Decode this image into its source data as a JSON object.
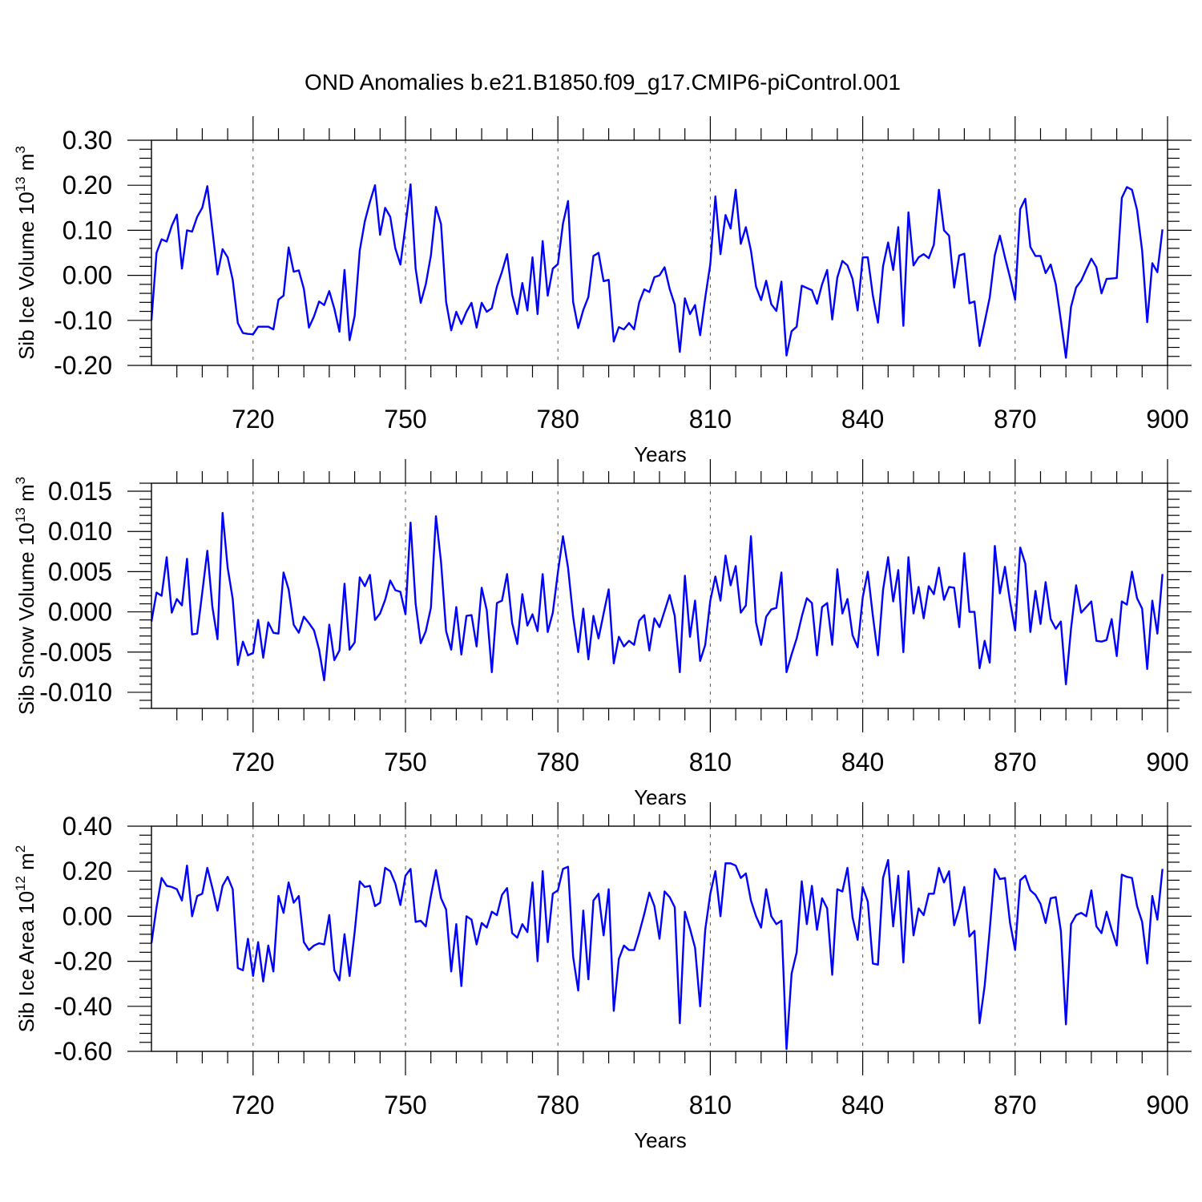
{
  "title": "OND Anomalies b.e21.B1850.f09_g17.CMIP6-piControl.001",
  "colors": {
    "line": "#0000ff",
    "axis": "#000000",
    "grid": "#555555"
  },
  "chart_data": [
    {
      "type": "line",
      "xlabel": "Years",
      "ylabel": {
        "prefix": "Sib Ice Volume 10",
        "exp": "13",
        "unit": " m",
        "unit_exp": "3"
      },
      "xlim": [
        700,
        900
      ],
      "ylim": [
        -0.2,
        0.3
      ],
      "yticks": [
        -0.2,
        -0.1,
        0.0,
        0.1,
        0.2,
        0.3
      ],
      "ytick_labels": [
        "-0.20",
        "-0.10",
        "0.00",
        "0.10",
        "0.20",
        "0.30"
      ],
      "xticks": [
        720,
        750,
        780,
        810,
        840,
        870,
        900
      ],
      "xtick_labels": [
        "720",
        "750",
        "780",
        "810",
        "840",
        "870",
        "900"
      ],
      "grid_x": "dashed vertical lines at labeled years",
      "x_start": 700,
      "series": [
        {
          "values": [
            -0.1,
            0.05,
            0.08,
            0.075,
            0.11,
            0.135,
            0.015,
            0.1,
            0.097,
            0.13,
            0.15,
            0.198,
            0.1,
            0.002,
            0.058,
            0.04,
            -0.01,
            -0.106,
            -0.128,
            -0.13,
            -0.131,
            -0.114,
            -0.114,
            -0.114,
            -0.12,
            -0.054,
            -0.045,
            0.062,
            0.008,
            0.011,
            -0.03,
            -0.116,
            -0.091,
            -0.058,
            -0.066,
            -0.035,
            -0.074,
            -0.125,
            0.012,
            -0.144,
            -0.09,
            0.055,
            0.12,
            0.163,
            0.2,
            0.09,
            0.15,
            0.13,
            0.06,
            0.024,
            0.11,
            0.202,
            0.015,
            -0.061,
            -0.02,
            0.044,
            0.152,
            0.114,
            -0.059,
            -0.122,
            -0.081,
            -0.108,
            -0.081,
            -0.061,
            -0.116,
            -0.061,
            -0.081,
            -0.073,
            -0.025,
            0.008,
            0.047,
            -0.043,
            -0.086,
            -0.017,
            -0.078,
            0.04,
            -0.086,
            0.076,
            -0.045,
            0.015,
            0.025,
            0.115,
            0.165,
            -0.059,
            -0.117,
            -0.077,
            -0.048,
            0.043,
            0.05,
            -0.013,
            -0.01,
            -0.147,
            -0.115,
            -0.12,
            -0.106,
            -0.12,
            -0.06,
            -0.031,
            -0.037,
            -0.004,
            0.0,
            0.018,
            -0.03,
            -0.065,
            -0.17,
            -0.051,
            -0.086,
            -0.066,
            -0.133,
            -0.05,
            0.025,
            0.175,
            0.047,
            0.134,
            0.104,
            0.19,
            0.07,
            0.107,
            0.055,
            -0.025,
            -0.055,
            -0.012,
            -0.064,
            -0.079,
            -0.014,
            -0.178,
            -0.124,
            -0.114,
            -0.023,
            -0.028,
            -0.033,
            -0.063,
            -0.02,
            0.012,
            -0.098,
            -0.005,
            0.032,
            0.022,
            -0.008,
            -0.078,
            0.04,
            0.04,
            -0.045,
            -0.105,
            0.02,
            0.073,
            0.012,
            0.107,
            -0.112,
            0.14,
            0.022,
            0.04,
            0.047,
            0.038,
            0.068,
            0.19,
            0.1,
            0.088,
            -0.027,
            0.044,
            0.048,
            -0.062,
            -0.058,
            -0.157,
            -0.104,
            -0.049,
            0.045,
            0.088,
            0.04,
            -0.005,
            -0.054,
            0.147,
            0.17,
            0.063,
            0.043,
            0.043,
            0.005,
            0.024,
            -0.02,
            -0.1,
            -0.183,
            -0.07,
            -0.027,
            -0.012,
            0.013,
            0.037,
            0.018,
            -0.04,
            -0.008,
            -0.007,
            -0.006,
            0.172,
            0.196,
            0.19,
            0.145,
            0.055,
            -0.104,
            0.027,
            0.007,
            0.102
          ]
        }
      ]
    },
    {
      "type": "line",
      "xlabel": "Years",
      "ylabel": {
        "prefix": "Sib Snow Volume 10",
        "exp": "13",
        "unit": " m",
        "unit_exp": "3"
      },
      "xlim": [
        700,
        900
      ],
      "ylim": [
        -0.012,
        0.016
      ],
      "yticks": [
        -0.01,
        -0.005,
        0.0,
        0.005,
        0.01,
        0.015
      ],
      "ytick_labels": [
        "-0.010",
        "-0.005",
        "0.000",
        "0.005",
        "0.010",
        "0.015"
      ],
      "xticks": [
        720,
        750,
        780,
        810,
        840,
        870,
        900
      ],
      "xtick_labels": [
        "720",
        "750",
        "780",
        "810",
        "840",
        "870",
        "900"
      ],
      "grid_x": "dashed vertical lines at labeled years",
      "x_start": 700,
      "series": [
        {
          "values": [
            -0.0012,
            0.0024,
            0.002,
            0.0068,
            -0.0001,
            0.0016,
            0.0008,
            0.0066,
            -0.0028,
            -0.0027,
            0.0024,
            0.0076,
            0.0006,
            -0.0034,
            0.0123,
            0.0055,
            0.0016,
            -0.0066,
            -0.0037,
            -0.0054,
            -0.0051,
            -0.001,
            -0.0057,
            -0.0013,
            -0.0026,
            -0.0027,
            0.0049,
            0.0028,
            -0.0016,
            -0.0026,
            -0.0006,
            -0.0014,
            -0.0023,
            -0.0047,
            -0.0085,
            -0.0016,
            -0.006,
            -0.0048,
            0.0035,
            -0.0047,
            -0.0038,
            0.0043,
            0.0032,
            0.0046,
            -0.001,
            -0.0002,
            0.0015,
            0.0039,
            0.0027,
            0.0025,
            -0.0003,
            0.0111,
            0.001,
            -0.0039,
            -0.0024,
            0.0005,
            0.0119,
            0.0062,
            -0.0024,
            -0.0047,
            0.0006,
            -0.0053,
            -0.0005,
            -0.0004,
            -0.0043,
            0.003,
            0.0002,
            -0.0075,
            0.0011,
            0.0014,
            0.0047,
            -0.0014,
            -0.004,
            0.0022,
            -0.0017,
            -0.0003,
            -0.0024,
            0.0047,
            -0.0025,
            -0.0001,
            0.0049,
            0.0094,
            0.0055,
            -0.0006,
            -0.005,
            0.0004,
            -0.0059,
            -0.0005,
            -0.0033,
            -0.0002,
            0.0028,
            -0.0064,
            -0.0031,
            -0.0043,
            -0.0036,
            -0.0041,
            -0.0011,
            -0.0004,
            -0.0048,
            -0.0008,
            -0.0019,
            0.0001,
            0.0021,
            -0.0005,
            -0.0075,
            0.0045,
            -0.0031,
            0.0014,
            -0.0061,
            -0.0041,
            0.0014,
            0.0044,
            0.0014,
            0.007,
            0.0033,
            0.0057,
            -0.0001,
            0.0008,
            0.0094,
            -0.0013,
            -0.0041,
            -0.0006,
            0.0003,
            0.0005,
            0.0049,
            -0.0075,
            -0.0053,
            -0.0033,
            -0.0006,
            0.0017,
            0.0011,
            -0.0054,
            0.0006,
            0.0011,
            -0.0041,
            0.0053,
            -0.0002,
            0.0016,
            -0.0029,
            -0.0044,
            0.0018,
            0.005,
            -0.0005,
            -0.0054,
            0.0027,
            0.0068,
            0.0013,
            0.0052,
            -0.005,
            0.0068,
            -0.0002,
            0.0031,
            -0.0008,
            0.0032,
            0.0022,
            0.0055,
            0.0015,
            0.0031,
            0.003,
            -0.0019,
            0.0073,
            0.0,
            0.0,
            -0.007,
            -0.0036,
            -0.0063,
            0.0082,
            0.0023,
            0.0056,
            0.0013,
            -0.0023,
            0.008,
            0.006,
            -0.0025,
            0.0026,
            -0.0015,
            0.0037,
            -0.0009,
            -0.0021,
            -0.0012,
            -0.009,
            -0.0021,
            0.0033,
            -0.0001,
            0.0006,
            0.0013,
            -0.0036,
            -0.0037,
            -0.0035,
            -0.0009,
            -0.0055,
            0.0013,
            0.0009,
            0.005,
            0.0017,
            0.0004,
            -0.0071,
            0.0014,
            -0.0027,
            0.0047
          ]
        }
      ]
    },
    {
      "type": "line",
      "xlabel": "Years",
      "ylabel": {
        "prefix": "Sib Ice Area 10",
        "exp": "12",
        "unit": " m",
        "unit_exp": "2"
      },
      "xlim": [
        700,
        900
      ],
      "ylim": [
        -0.6,
        0.4
      ],
      "yticks": [
        -0.6,
        -0.4,
        -0.2,
        0.0,
        0.2,
        0.4
      ],
      "ytick_labels": [
        "-0.60",
        "-0.40",
        "-0.20",
        "0.00",
        "0.20",
        "0.40"
      ],
      "xticks": [
        720,
        750,
        780,
        810,
        840,
        870,
        900
      ],
      "xtick_labels": [
        "720",
        "750",
        "780",
        "810",
        "840",
        "870",
        "900"
      ],
      "grid_x": "dashed vertical lines at labeled years",
      "x_start": 700,
      "series": [
        {
          "values": [
            -0.12,
            0.04,
            0.17,
            0.135,
            0.13,
            0.12,
            0.07,
            0.225,
            0.0,
            0.09,
            0.1,
            0.215,
            0.125,
            0.025,
            0.135,
            0.175,
            0.12,
            -0.23,
            -0.24,
            -0.1,
            -0.265,
            -0.115,
            -0.29,
            -0.13,
            -0.245,
            0.09,
            0.015,
            0.15,
            0.06,
            0.09,
            -0.115,
            -0.15,
            -0.13,
            -0.12,
            -0.125,
            0.005,
            -0.24,
            -0.285,
            -0.08,
            -0.265,
            -0.07,
            0.155,
            0.13,
            0.135,
            0.045,
            0.06,
            0.215,
            0.2,
            0.145,
            0.05,
            0.18,
            0.21,
            -0.025,
            -0.02,
            -0.045,
            0.09,
            0.205,
            0.08,
            0.03,
            -0.245,
            -0.035,
            -0.31,
            0.0,
            -0.015,
            -0.125,
            -0.03,
            -0.05,
            0.02,
            0.005,
            0.095,
            0.125,
            -0.075,
            -0.095,
            -0.035,
            -0.07,
            0.15,
            -0.2,
            0.2,
            -0.115,
            0.1,
            0.115,
            0.21,
            0.22,
            -0.18,
            -0.33,
            0.025,
            -0.28,
            0.07,
            0.1,
            -0.085,
            0.12,
            -0.42,
            -0.19,
            -0.13,
            -0.15,
            -0.15,
            -0.075,
            0.01,
            0.105,
            0.045,
            -0.1,
            0.11,
            0.085,
            0.04,
            -0.475,
            0.02,
            -0.055,
            -0.14,
            -0.4,
            -0.06,
            0.1,
            0.2,
            0.0,
            0.235,
            0.235,
            0.225,
            0.17,
            0.19,
            0.07,
            0.0,
            -0.05,
            0.12,
            0.0,
            -0.035,
            -0.02,
            -0.59,
            -0.255,
            -0.16,
            0.155,
            -0.035,
            0.135,
            -0.06,
            0.08,
            0.035,
            -0.26,
            0.12,
            0.11,
            0.215,
            -0.005,
            -0.105,
            0.13,
            0.065,
            -0.21,
            -0.215,
            0.17,
            0.25,
            -0.045,
            0.18,
            -0.205,
            0.2,
            -0.085,
            0.035,
            0.005,
            0.1,
            0.1,
            0.215,
            0.15,
            0.2,
            -0.04,
            0.035,
            0.13,
            -0.09,
            -0.065,
            -0.475,
            -0.31,
            -0.06,
            0.21,
            0.165,
            0.17,
            -0.03,
            -0.15,
            0.16,
            0.18,
            0.115,
            0.095,
            0.055,
            -0.03,
            0.08,
            0.085,
            -0.065,
            -0.48,
            -0.035,
            0.005,
            0.015,
            0.0,
            0.115,
            -0.045,
            -0.075,
            0.02,
            -0.06,
            -0.13,
            0.185,
            0.175,
            0.17,
            0.045,
            -0.025,
            -0.21,
            0.09,
            -0.015,
            0.21
          ]
        }
      ]
    }
  ]
}
